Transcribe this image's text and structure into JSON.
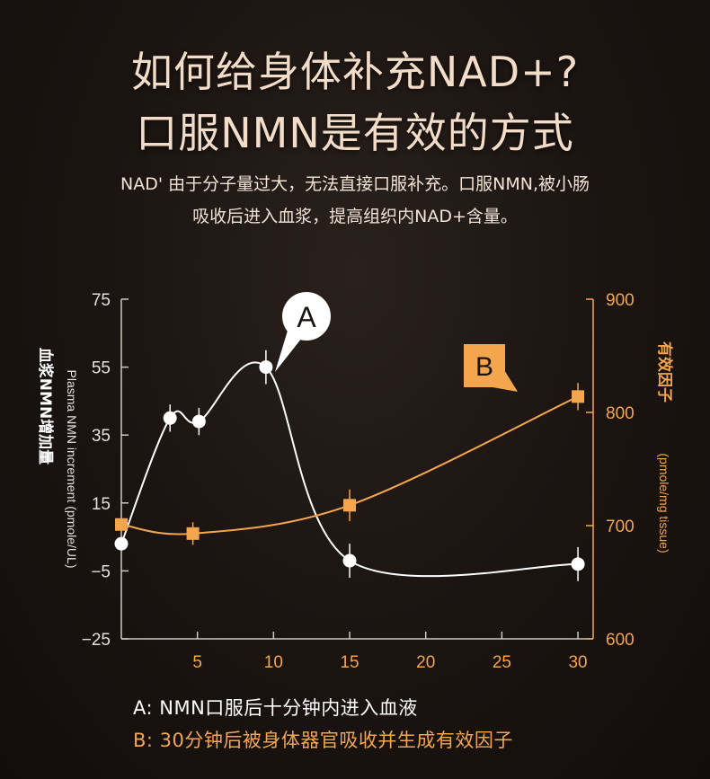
{
  "heading": {
    "line1": "如何给身体补充NAD+?",
    "line2": "口服NMN是有效的方式"
  },
  "intro": {
    "line1": "NAD' 由于分子量过大，无法直接口服补充。口服NMN,被小肠",
    "line2": "吸收后进入血浆，提高组织内NAD+含量。"
  },
  "legend": {
    "a": "A: NMN口服后十分钟内进入血液",
    "b": "B: 30分钟后被身体器官吸收并生成有效因子"
  },
  "chart_data": {
    "type": "line",
    "x_ticks": [
      5,
      10,
      15,
      20,
      25,
      30
    ],
    "xlim": [
      0,
      31
    ],
    "left_axis": {
      "label_en": "Plasma NMN increment  (pmole/UL)",
      "label_cn": "血浆NMN增加量",
      "ylim": [
        -25,
        75
      ],
      "ticks": [
        75,
        55,
        35,
        15,
        -5,
        -25
      ],
      "tick_labels": [
        "75",
        "55",
        "35",
        "15",
        "−5",
        "−25"
      ]
    },
    "right_axis": {
      "label_cn": "有效因子",
      "label_en": "(pmole/mg tissue)",
      "ylim": [
        600,
        900
      ],
      "ticks": [
        900,
        800,
        700,
        600
      ]
    },
    "series": [
      {
        "name": "A",
        "axis": "left",
        "color": "#ffffff",
        "marker": "circle",
        "points": [
          [
            0,
            3
          ],
          [
            3.2,
            40
          ],
          [
            5.1,
            39
          ],
          [
            9.5,
            55
          ],
          [
            15,
            -2
          ],
          [
            30,
            -3
          ]
        ],
        "error": [
          0,
          4,
          4,
          5,
          5,
          5
        ]
      },
      {
        "name": "B",
        "axis": "right",
        "color": "#f3a64e",
        "marker": "square",
        "points": [
          [
            0,
            701
          ],
          [
            4.7,
            693
          ],
          [
            15,
            718
          ],
          [
            30,
            814
          ]
        ],
        "error": [
          0,
          10,
          14,
          12
        ]
      }
    ],
    "callouts": [
      {
        "label": "A",
        "series": "A"
      },
      {
        "label": "B",
        "series": "B"
      }
    ]
  }
}
